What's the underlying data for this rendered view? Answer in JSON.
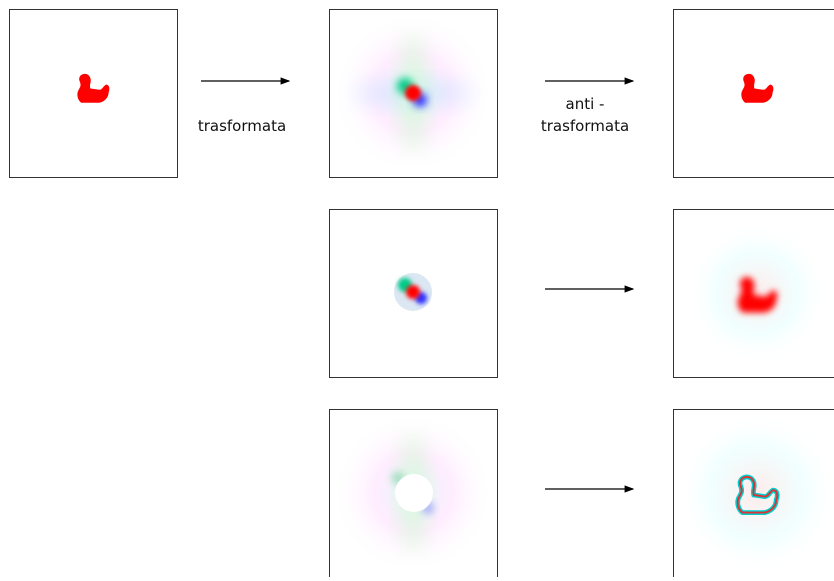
{
  "arrows": [
    {
      "label": "trasformata"
    },
    {
      "label_lines": [
        "anti -",
        "trasformata"
      ]
    }
  ]
}
